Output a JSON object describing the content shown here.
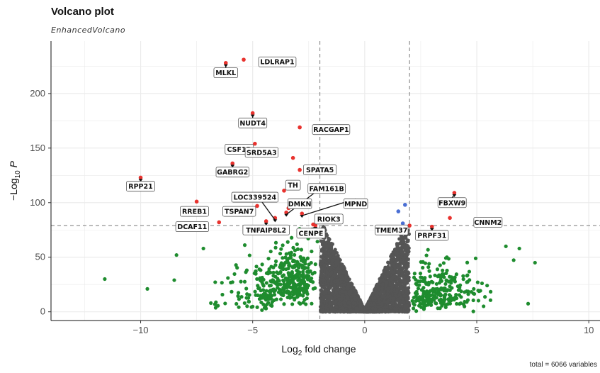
{
  "chart_data": {
    "type": "scatter",
    "title": "Volcano plot",
    "subtitle": "EnhancedVolcano",
    "caption": "total = 6066 variables",
    "xlabel": "Log2 fold change",
    "ylabel": "-Log10 P",
    "xlim": [
      -14,
      10.5
    ],
    "ylim": [
      -8,
      248
    ],
    "x_ticks": [
      -10,
      -5,
      0,
      5,
      10
    ],
    "y_ticks": [
      0,
      50,
      100,
      150,
      200
    ],
    "fc_cutoff": 2,
    "p_cutoff_neglog10": 79,
    "grid": true,
    "colors": {
      "ns": "#555555",
      "log2fc": "#1e8c2e",
      "p": "#4a6fd4",
      "both": "#e8322e"
    },
    "labeled_points": [
      {
        "label": "MLKL",
        "x": -6.2,
        "y": 228,
        "lx": -6.2,
        "ly": 219,
        "arrow": true
      },
      {
        "label": "LDLRAP1",
        "x": -5.4,
        "y": 231,
        "lx": -3.9,
        "ly": 229,
        "arrow": false
      },
      {
        "label": "NUDT4",
        "x": -5.0,
        "y": 182,
        "lx": -5.0,
        "ly": 173,
        "arrow": true
      },
      {
        "label": "RACGAP1",
        "x": -2.9,
        "y": 169,
        "lx": -1.5,
        "ly": 167,
        "arrow": false
      },
      {
        "label": "CSF1R",
        "x": -4.9,
        "y": 154,
        "lx": -5.6,
        "ly": 149,
        "arrow": false
      },
      {
        "label": "SRD5A3",
        "x": -3.2,
        "y": 141,
        "lx": -4.6,
        "ly": 146,
        "arrow": false
      },
      {
        "label": "GABRG2",
        "x": -5.9,
        "y": 136,
        "lx": -5.9,
        "ly": 128,
        "arrow": true
      },
      {
        "label": "SPATA5",
        "x": -2.9,
        "y": 130,
        "lx": -2.0,
        "ly": 130,
        "arrow": false
      },
      {
        "label": "RPP21",
        "x": -10.0,
        "y": 123,
        "lx": -10.0,
        "ly": 115,
        "arrow": true
      },
      {
        "label": "TH",
        "x": -3.6,
        "y": 111,
        "lx": -3.2,
        "ly": 116,
        "arrow": false
      },
      {
        "label": "FAM161B",
        "x": -3.5,
        "y": 91,
        "lx": -1.7,
        "ly": 113,
        "arrow": true
      },
      {
        "label": "LOC339524",
        "x": -4.0,
        "y": 86,
        "lx": -4.9,
        "ly": 105,
        "arrow": true
      },
      {
        "label": "DMKN",
        "x": -3.4,
        "y": 95,
        "lx": -2.9,
        "ly": 99,
        "arrow": false
      },
      {
        "label": "MPND",
        "x": -2.8,
        "y": 90,
        "lx": -0.4,
        "ly": 99,
        "arrow": true
      },
      {
        "label": "TSPAN7",
        "x": -4.8,
        "y": 97,
        "lx": -5.6,
        "ly": 92,
        "arrow": false
      },
      {
        "label": "RREB1",
        "x": -7.5,
        "y": 101,
        "lx": -7.6,
        "ly": 92,
        "arrow": false
      },
      {
        "label": "RIOK3",
        "x": -2.3,
        "y": 80,
        "lx": -1.6,
        "ly": 85,
        "arrow": false
      },
      {
        "label": "TNFAIP8L2",
        "x": -4.4,
        "y": 83,
        "lx": -4.4,
        "ly": 75,
        "arrow": true
      },
      {
        "label": "DCAF11",
        "x": -6.5,
        "y": 82,
        "lx": -7.7,
        "ly": 78,
        "arrow": false
      },
      {
        "label": "CENPE",
        "x": -2.2,
        "y": 79,
        "lx": -2.4,
        "ly": 72,
        "arrow": true
      },
      {
        "label": "TMEM37",
        "x": 2.0,
        "y": 79,
        "lx": 1.2,
        "ly": 75,
        "arrow": false
      },
      {
        "label": "FBXW9",
        "x": 4.0,
        "y": 109,
        "lx": 3.9,
        "ly": 100,
        "arrow": true
      },
      {
        "label": "CNNM2",
        "x": 3.8,
        "y": 86,
        "lx": 5.5,
        "ly": 82,
        "arrow": false
      },
      {
        "label": "PRPF31",
        "x": 3.0,
        "y": 78,
        "lx": 3.0,
        "ly": 70,
        "arrow": true
      }
    ],
    "p_only_points": [
      {
        "x": 1.8,
        "y": 98
      },
      {
        "x": 1.5,
        "y": 92
      },
      {
        "x": 1.7,
        "y": 81
      }
    ],
    "background_points": {
      "n_ns": 2600,
      "n_fc_left": 400,
      "n_fc_right": 260
    }
  }
}
